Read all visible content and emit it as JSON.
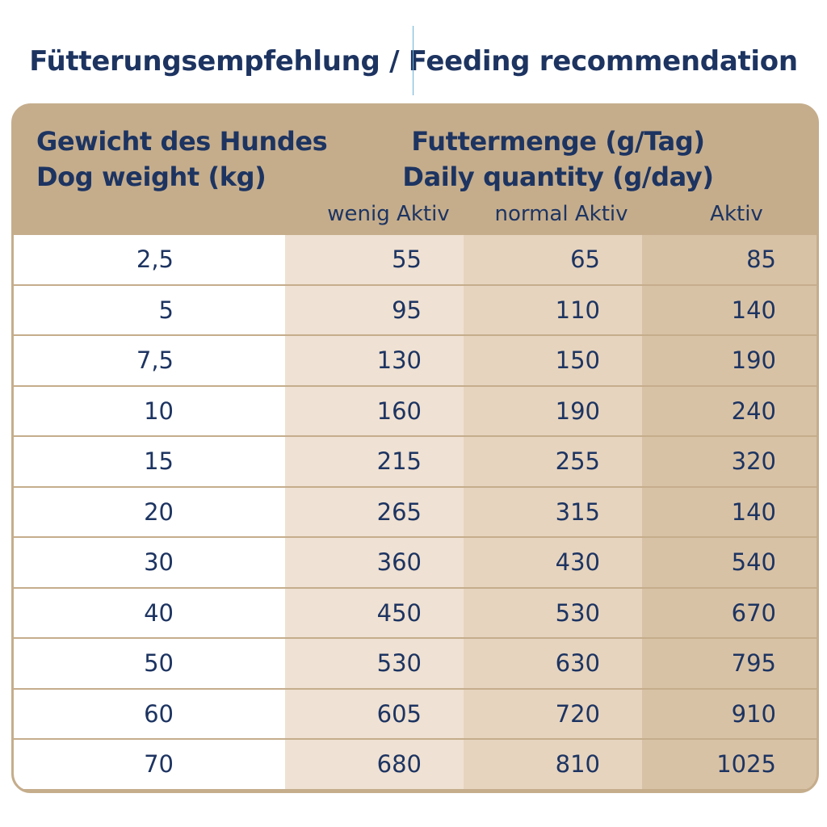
{
  "title": "Fütterungsempfehlung / Feeding recommendation",
  "colors": {
    "text": "#1d3461",
    "frame": "#c5ad8c",
    "col_light": "#efe1d3",
    "col_mid": "#e6d4bf",
    "col_dark": "#d8c2a6"
  },
  "header": {
    "weight_de": "Gewicht des Hundes",
    "weight_en": "Dog weight (kg)",
    "qty_de": "Futtermenge (g/Tag)",
    "qty_en": "Daily quantity (g/day)",
    "activity": [
      "wenig Aktiv",
      "normal Aktiv",
      "Aktiv"
    ]
  },
  "rows": [
    {
      "weight": "2,5",
      "low": "55",
      "normal": "65",
      "active": "85"
    },
    {
      "weight": "5",
      "low": "95",
      "normal": "110",
      "active": "140"
    },
    {
      "weight": "7,5",
      "low": "130",
      "normal": "150",
      "active": "190"
    },
    {
      "weight": "10",
      "low": "160",
      "normal": "190",
      "active": "240"
    },
    {
      "weight": "15",
      "low": "215",
      "normal": "255",
      "active": "320"
    },
    {
      "weight": "20",
      "low": "265",
      "normal": "315",
      "active": "140"
    },
    {
      "weight": "30",
      "low": "360",
      "normal": "430",
      "active": "540"
    },
    {
      "weight": "40",
      "low": "450",
      "normal": "530",
      "active": "670"
    },
    {
      "weight": "50",
      "low": "530",
      "normal": "630",
      "active": "795"
    },
    {
      "weight": "60",
      "low": "605",
      "normal": "720",
      "active": "910"
    },
    {
      "weight": "70",
      "low": "680",
      "normal": "810",
      "active": "1025"
    }
  ]
}
